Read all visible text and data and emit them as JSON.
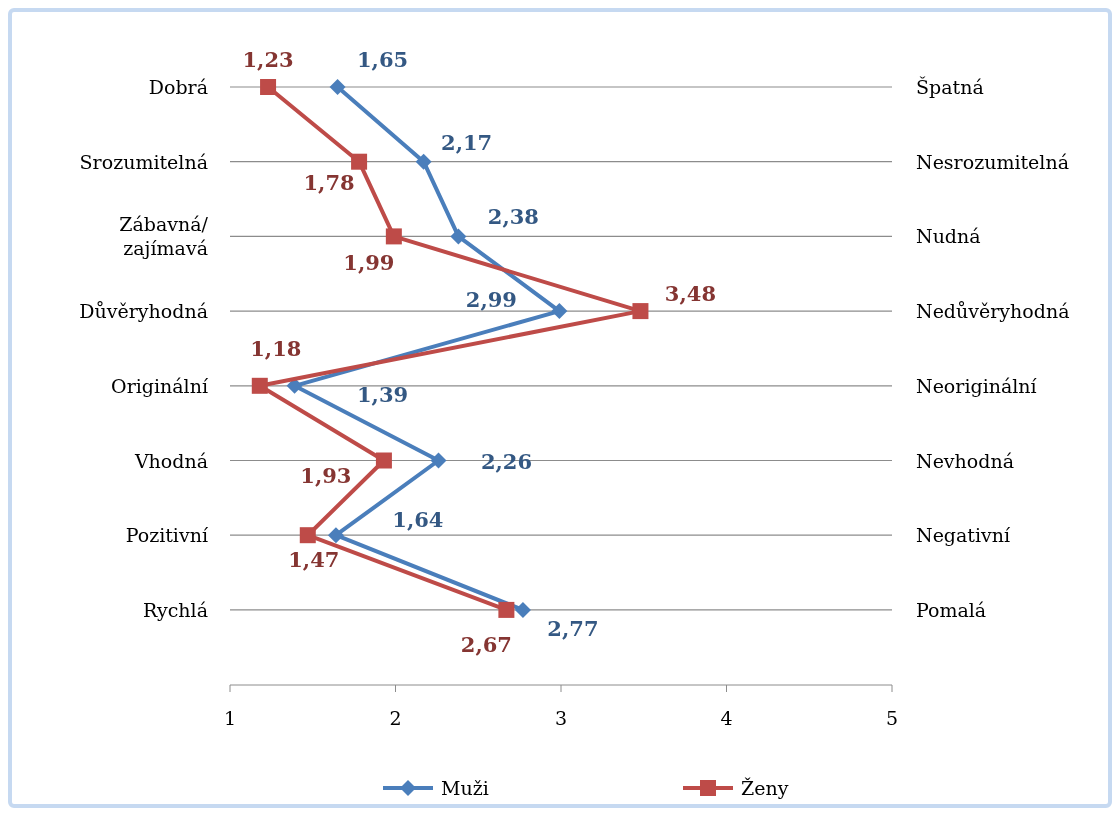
{
  "chart_data": {
    "type": "line",
    "orientation": "horizontal",
    "categories": [
      "Dobrá",
      "Srozumitelná",
      "Zábavná/ zajímavá",
      "Důvěryhodná",
      "Originální",
      "Vhodná",
      "Pozitivní",
      "Rychlá"
    ],
    "y2_categories": [
      "Špatná",
      "Nesrozumitelná",
      "Nudná",
      "Nedůvěryhodná",
      "Neoriginální",
      "Nevhodná",
      "Negativní",
      "Pomalá"
    ],
    "series": [
      {
        "name": "Muži",
        "color": "#4a7ebb",
        "marker": "diamond",
        "values": [
          1.65,
          2.17,
          2.38,
          2.99,
          1.39,
          2.26,
          1.64,
          2.77
        ],
        "value_labels": [
          "1,65",
          "2,17",
          "2,38",
          "2,99",
          "1,39",
          "2,26",
          "1,64",
          "2,77"
        ]
      },
      {
        "name": "Ženy",
        "color": "#be4b48",
        "marker": "square",
        "values": [
          1.23,
          1.78,
          1.99,
          3.48,
          1.18,
          1.93,
          1.47,
          2.67
        ],
        "value_labels": [
          "1,23",
          "1,78",
          "1,99",
          "3,48",
          "1,18",
          "1,93",
          "1,47",
          "2,67"
        ]
      }
    ],
    "xlim": [
      1,
      5
    ],
    "xticks": [
      1,
      2,
      3,
      4,
      5
    ],
    "grid": "y",
    "legend": "bottom"
  }
}
